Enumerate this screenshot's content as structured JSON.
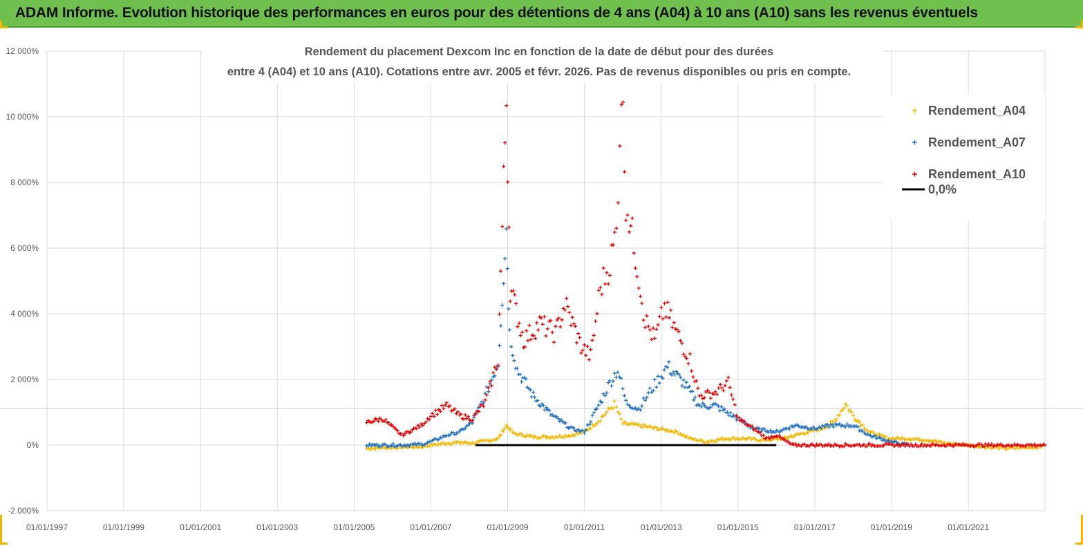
{
  "header": {
    "banner_title": "ADAM Informe. Evolution historique des performances en euros pour des détentions de 4 ans (A04) à 10 ans (A10) sans les revenus éventuels"
  },
  "colors": {
    "banner_bg": "#6fc04f",
    "series_A04": "#f5b800",
    "series_A07": "#1f6fbf",
    "series_A10": "#e60000",
    "zero_line": "#000000"
  },
  "chart_data": {
    "type": "scatter",
    "title_lines": [
      "Rendement du placement Dexcom Inc en fonction de la date de début pour des durées",
      "entre 4 (A04) et 10 ans (A10). Cotations entre avr. 2005 et févr. 2026. Pas de revenus disponibles ou pris en compte."
    ],
    "x_tick_labels": [
      "01/01/1997",
      "01/01/1999",
      "01/01/2001",
      "01/01/2003",
      "01/01/2005",
      "01/01/2007",
      "01/01/2009",
      "01/01/2011",
      "01/01/2013",
      "01/01/2015",
      "01/01/2017",
      "01/01/2019",
      "01/01/2021"
    ],
    "y_tick_labels": [
      "-2 000%",
      "0%",
      "2 000%",
      "4 000%",
      "6 000%",
      "8 000%",
      "10 000%",
      "12 000%"
    ],
    "xlim": [
      "1997-01-01",
      "2022-12-31"
    ],
    "ylim": [
      -2000,
      12000
    ],
    "grid": true,
    "legend_position": "top-right",
    "series": [
      {
        "name": "Rendement_A04",
        "marker": "+",
        "points": [
          [
            "2005-05-01",
            -100
          ],
          [
            "2005-10-01",
            -80
          ],
          [
            "2006-04-01",
            -60
          ],
          [
            "2006-10-01",
            -50
          ],
          [
            "2007-01-01",
            0
          ],
          [
            "2007-06-01",
            60
          ],
          [
            "2007-10-01",
            80
          ],
          [
            "2008-02-01",
            60
          ],
          [
            "2008-06-01",
            120
          ],
          [
            "2008-10-01",
            200
          ],
          [
            "2008-12-20",
            600
          ],
          [
            "2009-03-01",
            350
          ],
          [
            "2009-09-01",
            250
          ],
          [
            "2010-03-01",
            250
          ],
          [
            "2010-09-01",
            300
          ],
          [
            "2011-01-01",
            400
          ],
          [
            "2011-05-01",
            700
          ],
          [
            "2011-08-01",
            1000
          ],
          [
            "2011-10-15",
            1250
          ],
          [
            "2012-01-01",
            650
          ],
          [
            "2012-06-01",
            600
          ],
          [
            "2012-12-01",
            500
          ],
          [
            "2013-06-01",
            400
          ],
          [
            "2013-10-01",
            200
          ],
          [
            "2014-03-01",
            100
          ],
          [
            "2014-09-01",
            200
          ],
          [
            "2015-03-01",
            200
          ],
          [
            "2015-09-01",
            150
          ],
          [
            "2016-03-01",
            200
          ],
          [
            "2016-09-01",
            350
          ],
          [
            "2017-03-01",
            500
          ],
          [
            "2017-07-01",
            700
          ],
          [
            "2017-10-20",
            1250
          ],
          [
            "2018-01-01",
            900
          ],
          [
            "2018-06-01",
            400
          ],
          [
            "2018-12-01",
            200
          ],
          [
            "2019-06-01",
            200
          ],
          [
            "2020-01-01",
            150
          ],
          [
            "2020-06-01",
            50
          ],
          [
            "2021-01-01",
            0
          ],
          [
            "2021-06-01",
            -50
          ],
          [
            "2022-01-01",
            -100
          ],
          [
            "2022-12-01",
            -50
          ]
        ]
      },
      {
        "name": "Rendement_A07",
        "marker": "+",
        "points": [
          [
            "2005-05-01",
            0
          ],
          [
            "2005-10-01",
            0
          ],
          [
            "2006-04-01",
            0
          ],
          [
            "2006-10-01",
            20
          ],
          [
            "2007-01-01",
            100
          ],
          [
            "2007-06-01",
            300
          ],
          [
            "2007-10-01",
            400
          ],
          [
            "2008-02-01",
            700
          ],
          [
            "2008-06-01",
            1500
          ],
          [
            "2008-10-01",
            2500
          ],
          [
            "2008-12-20",
            6600
          ],
          [
            "2009-01-20",
            3400
          ],
          [
            "2009-04-01",
            2300
          ],
          [
            "2009-09-01",
            1500
          ],
          [
            "2010-03-01",
            900
          ],
          [
            "2010-09-01",
            500
          ],
          [
            "2011-01-01",
            400
          ],
          [
            "2011-06-01",
            1300
          ],
          [
            "2011-09-01",
            1900
          ],
          [
            "2011-11-15",
            2300
          ],
          [
            "2012-02-01",
            1300
          ],
          [
            "2012-06-01",
            1100
          ],
          [
            "2012-10-01",
            1700
          ],
          [
            "2013-03-01",
            2400
          ],
          [
            "2013-08-01",
            1900
          ],
          [
            "2014-01-01",
            1200
          ],
          [
            "2014-06-01",
            1200
          ],
          [
            "2015-01-01",
            800
          ],
          [
            "2015-06-01",
            500
          ],
          [
            "2016-01-01",
            400
          ],
          [
            "2016-07-01",
            600
          ],
          [
            "2017-01-01",
            500
          ],
          [
            "2017-06-01",
            600
          ],
          [
            "2018-01-01",
            600
          ],
          [
            "2018-06-01",
            300
          ],
          [
            "2019-01-01",
            100
          ],
          [
            "2019-06-01",
            0
          ]
        ]
      },
      {
        "name": "Rendement_A10",
        "marker": "+",
        "points": [
          [
            "2005-05-01",
            700
          ],
          [
            "2005-10-01",
            800
          ],
          [
            "2006-04-01",
            300
          ],
          [
            "2006-10-01",
            600
          ],
          [
            "2007-01-01",
            900
          ],
          [
            "2007-06-01",
            1200
          ],
          [
            "2007-10-01",
            900
          ],
          [
            "2008-02-01",
            800
          ],
          [
            "2008-06-01",
            1300
          ],
          [
            "2008-10-01",
            2600
          ],
          [
            "2008-12-20",
            10600
          ],
          [
            "2009-01-25",
            4800
          ],
          [
            "2009-06-01",
            3200
          ],
          [
            "2009-11-01",
            3700
          ],
          [
            "2010-04-01",
            3400
          ],
          [
            "2010-07-01",
            4300
          ],
          [
            "2010-12-01",
            3000
          ],
          [
            "2011-03-01",
            2700
          ],
          [
            "2011-06-01",
            4800
          ],
          [
            "2011-09-01",
            5500
          ],
          [
            "2011-11-01",
            6500
          ],
          [
            "2011-12-20",
            11000
          ],
          [
            "2012-02-01",
            7500
          ],
          [
            "2012-05-01",
            5800
          ],
          [
            "2012-08-01",
            3800
          ],
          [
            "2012-11-01",
            3200
          ],
          [
            "2013-02-01",
            4200
          ],
          [
            "2013-06-01",
            3400
          ],
          [
            "2013-10-01",
            2600
          ],
          [
            "2014-01-01",
            1500
          ],
          [
            "2014-06-01",
            1600
          ],
          [
            "2014-10-01",
            1900
          ],
          [
            "2015-01-01",
            800
          ],
          [
            "2015-06-01",
            500
          ],
          [
            "2015-10-01",
            200
          ],
          [
            "2016-01-01",
            300
          ],
          [
            "2016-06-01",
            0
          ],
          [
            "2022-12-31",
            0
          ]
        ]
      },
      {
        "name": "0,0%",
        "marker": "line",
        "points": [
          [
            "2008-03-01",
            0
          ],
          [
            "2016-01-01",
            0
          ]
        ]
      }
    ]
  }
}
